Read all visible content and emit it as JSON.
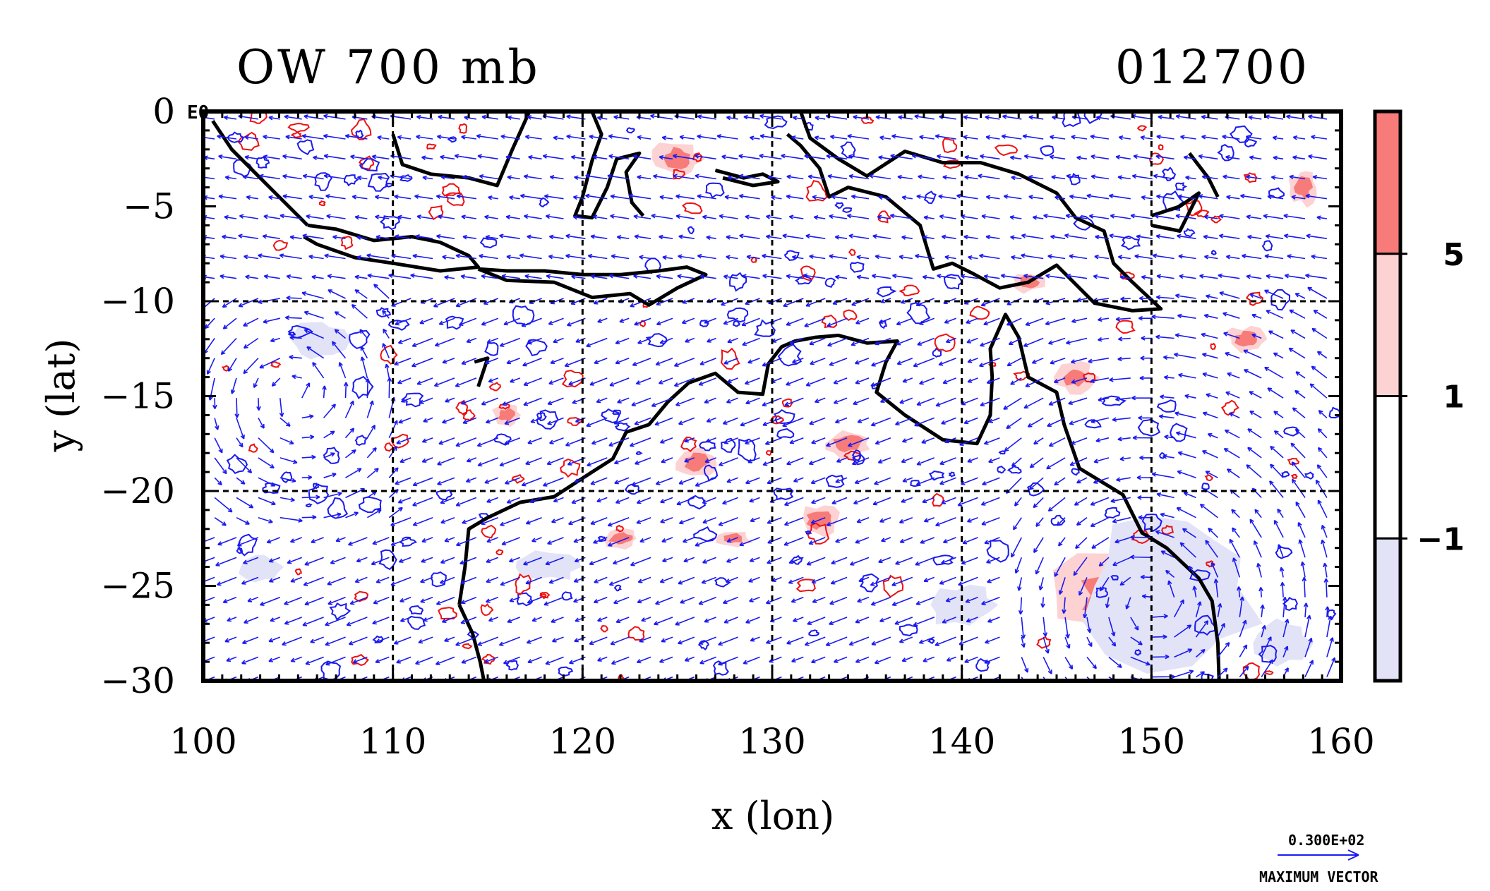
{
  "figure": {
    "title_left": "OW 700 mb",
    "title_right": "012700",
    "corner_mark": "E0",
    "xlabel": "x (lon)",
    "ylabel": "y (lat)",
    "max_vector_value": "0.300E+02",
    "max_vector_label": "MAXIMUM VECTOR"
  },
  "chart_data": {
    "type": "map",
    "xlim": [
      100,
      160
    ],
    "ylim": [
      -30,
      0
    ],
    "x_ticks": [
      "100",
      "110",
      "120",
      "130",
      "140",
      "150",
      "160"
    ],
    "y_ticks": [
      "0",
      "−5",
      "−10",
      "−15",
      "−20",
      "−25",
      "−30"
    ],
    "x_tick_values": [
      100,
      110,
      120,
      130,
      140,
      150,
      160
    ],
    "y_tick_values": [
      0,
      -5,
      -10,
      -15,
      -20,
      -25,
      -30
    ],
    "grid_lon": [
      110,
      120,
      130,
      140,
      150
    ],
    "grid_lat": [
      -10,
      -20
    ],
    "colorbar": {
      "levels": [
        "5",
        "1",
        "−1"
      ],
      "colors": [
        "#f77b78",
        "#fdd2d2",
        "#ffffff",
        "#e2e3f7"
      ]
    },
    "colors": {
      "vector": "#1a1af0",
      "positive_contour": "#ee1111",
      "negative_contour": "#1a1af0",
      "coastline": "#000000"
    }
  }
}
